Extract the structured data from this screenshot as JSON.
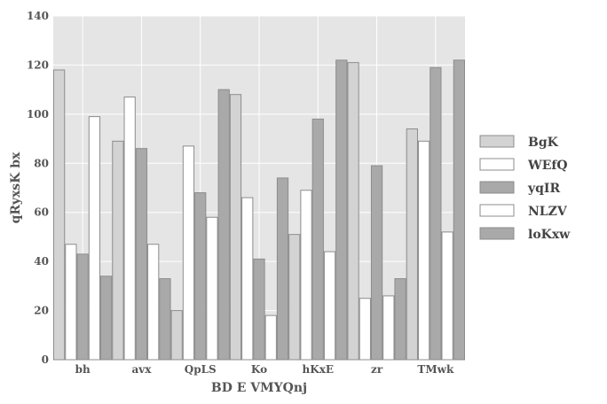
{
  "chart_data": {
    "type": "bar",
    "title": "",
    "xlabel": "BD E VMYQnj",
    "ylabel": "qRyxsK bx",
    "ylim": [
      0,
      140
    ],
    "yticks": [
      0,
      20,
      40,
      60,
      80,
      100,
      120,
      140
    ],
    "grid": true,
    "legend_position": "right",
    "categories": [
      "bh",
      "avx",
      "QpLS",
      "Ko",
      "hKxE",
      "zr",
      "TMwk"
    ],
    "series": [
      {
        "name": "BgK",
        "color": "#d3d3d3",
        "values": [
          118,
          89,
          20,
          108,
          51,
          121,
          94
        ]
      },
      {
        "name": "WEfQ",
        "color": "#ffffff",
        "values": [
          47,
          107,
          87,
          66,
          69,
          25,
          89
        ]
      },
      {
        "name": "yqIR",
        "color": "#a9a9a9",
        "values": [
          43,
          86,
          68,
          41,
          98,
          79,
          119
        ]
      },
      {
        "name": "NLZV",
        "color": "#ffffff",
        "values": [
          99,
          47,
          58,
          18,
          44,
          26,
          52
        ]
      },
      {
        "name": "loKxw",
        "color": "#a9a9a9",
        "values": [
          34,
          33,
          110,
          74,
          122,
          33,
          122
        ]
      }
    ]
  },
  "colors": {
    "plot_background": "#e5e5e5",
    "grid": "#ffffff",
    "bar_edge": "#8c8c8c",
    "text": "#555555"
  }
}
